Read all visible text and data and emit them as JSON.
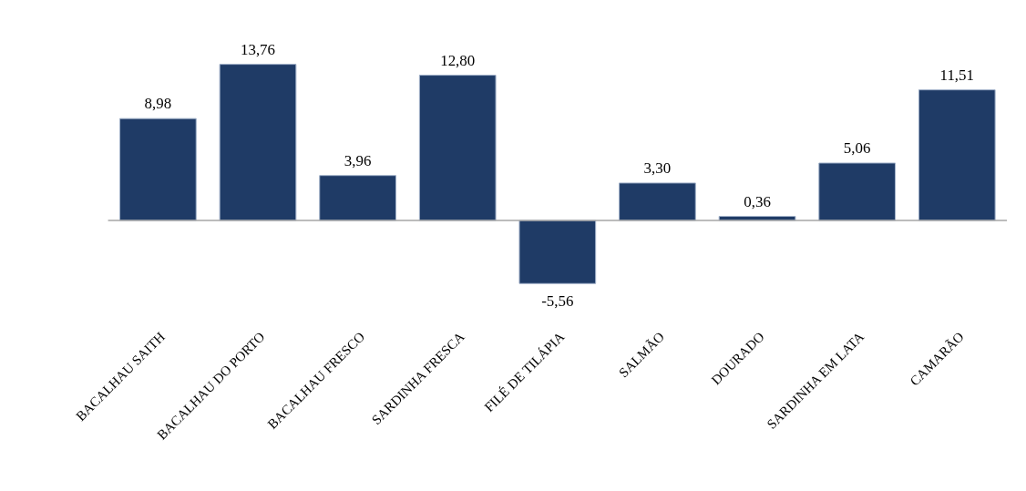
{
  "chart_data": {
    "type": "bar",
    "categories": [
      "BACALHAU SAITH",
      "BACALHAU DO PORTO",
      "BACALHAU FRESCO",
      "SARDINHA FRESCA",
      "FILÉ DE TILÁPIA",
      "SALMÃO",
      "DOURADO",
      "SARDINHA EM LATA",
      "CAMARÃO"
    ],
    "values": [
      8.98,
      13.76,
      3.96,
      12.8,
      -5.56,
      3.3,
      0.36,
      5.06,
      11.51
    ],
    "value_labels": [
      "8,98",
      "13,76",
      "3,96",
      "12,80",
      "-5,56",
      "3,30",
      "0,36",
      "5,06",
      "11,51"
    ],
    "color": "#1f3b66",
    "grid": false
  }
}
